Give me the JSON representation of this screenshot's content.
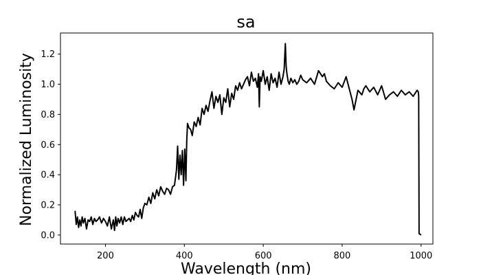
{
  "chart_data": {
    "type": "line",
    "title": "sa",
    "xlabel": "Wavelength (nm)",
    "ylabel": "Normalized Luminosity",
    "xlim": [
      86,
      1030
    ],
    "ylim": [
      -0.06,
      1.34
    ],
    "x_ticks": [
      {
        "value": 200,
        "label": "200"
      },
      {
        "value": 400,
        "label": "400"
      },
      {
        "value": 600,
        "label": "600"
      },
      {
        "value": 800,
        "label": "800"
      },
      {
        "value": 1000,
        "label": "1000"
      }
    ],
    "y_ticks": [
      {
        "value": 0.0,
        "label": "0.0"
      },
      {
        "value": 0.2,
        "label": "0.2"
      },
      {
        "value": 0.4,
        "label": "0.4"
      },
      {
        "value": 0.6,
        "label": "0.6"
      },
      {
        "value": 0.8,
        "label": "0.8"
      },
      {
        "value": 1.0,
        "label": "1.0"
      },
      {
        "value": 1.2,
        "label": "1.2"
      }
    ],
    "grid": false,
    "legend": "none",
    "series": [
      {
        "color": "#000000",
        "x": [
          123,
          126,
          129,
          132,
          135,
          138,
          141,
          144,
          148,
          152,
          156,
          160,
          164,
          168,
          172,
          176,
          180,
          185,
          190,
          195,
          200,
          205,
          210,
          215,
          220,
          223,
          226,
          229,
          232,
          236,
          240,
          244,
          248,
          252,
          256,
          260,
          264,
          268,
          272,
          276,
          280,
          284,
          288,
          292,
          296,
          300,
          305,
          310,
          315,
          320,
          325,
          330,
          335,
          340,
          345,
          350,
          355,
          360,
          365,
          370,
          375,
          380,
          383,
          386,
          389,
          392,
          395,
          398,
          401,
          404,
          406,
          408,
          412,
          416,
          420,
          425,
          430,
          435,
          440,
          445,
          450,
          455,
          460,
          465,
          470,
          475,
          480,
          485,
          490,
          495,
          500,
          505,
          510,
          515,
          520,
          525,
          530,
          535,
          540,
          545,
          550,
          555,
          560,
          565,
          570,
          575,
          580,
          585,
          588,
          590,
          592,
          595,
          600,
          605,
          610,
          615,
          620,
          625,
          630,
          635,
          640,
          645,
          650,
          653,
          656,
          658,
          660,
          663,
          666,
          670,
          675,
          680,
          685,
          690,
          695,
          700,
          710,
          720,
          730,
          740,
          750,
          755,
          760,
          770,
          780,
          790,
          800,
          810,
          820,
          825,
          830,
          840,
          850,
          855,
          860,
          870,
          880,
          890,
          900,
          910,
          920,
          930,
          940,
          950,
          960,
          970,
          980,
          990,
          993,
          994,
          995,
          1000
        ],
        "y": [
          0.16,
          0.07,
          0.12,
          0.05,
          0.1,
          0.06,
          0.12,
          0.08,
          0.11,
          0.04,
          0.1,
          0.09,
          0.12,
          0.07,
          0.11,
          0.09,
          0.1,
          0.12,
          0.08,
          0.11,
          0.09,
          0.06,
          0.12,
          0.04,
          0.1,
          0.03,
          0.12,
          0.06,
          0.11,
          0.08,
          0.12,
          0.07,
          0.12,
          0.09,
          0.1,
          0.11,
          0.09,
          0.13,
          0.1,
          0.15,
          0.13,
          0.12,
          0.17,
          0.11,
          0.18,
          0.21,
          0.2,
          0.25,
          0.21,
          0.28,
          0.24,
          0.3,
          0.26,
          0.32,
          0.29,
          0.27,
          0.31,
          0.3,
          0.27,
          0.32,
          0.33,
          0.43,
          0.59,
          0.37,
          0.53,
          0.4,
          0.56,
          0.33,
          0.57,
          0.36,
          0.62,
          0.74,
          0.71,
          0.7,
          0.66,
          0.75,
          0.72,
          0.78,
          0.73,
          0.84,
          0.8,
          0.86,
          0.82,
          0.89,
          0.95,
          0.84,
          0.92,
          0.88,
          0.93,
          0.8,
          0.91,
          0.88,
          0.97,
          0.85,
          0.94,
          0.9,
          0.99,
          0.96,
          1.01,
          0.97,
          1.0,
          1.03,
          1.05,
          0.99,
          1.08,
          1.02,
          1.04,
          0.98,
          1.07,
          0.85,
          1.05,
          1.02,
          1.09,
          1.0,
          1.05,
          0.96,
          1.07,
          1.01,
          1.04,
          0.98,
          1.08,
          1.0,
          1.05,
          1.1,
          1.27,
          1.12,
          1.07,
          1.02,
          1.0,
          1.04,
          1.01,
          1.03,
          1.0,
          1.02,
          1.06,
          1.03,
          1.01,
          1.04,
          1.0,
          1.09,
          1.05,
          1.07,
          1.02,
          0.99,
          0.97,
          1.01,
          0.98,
          1.05,
          0.95,
          0.9,
          0.83,
          0.96,
          0.93,
          0.97,
          0.99,
          0.95,
          0.98,
          0.93,
          0.99,
          0.9,
          0.93,
          0.95,
          0.92,
          0.96,
          0.93,
          0.95,
          0.92,
          0.96,
          0.95,
          0.92,
          0.01,
          0.0
        ]
      }
    ]
  }
}
